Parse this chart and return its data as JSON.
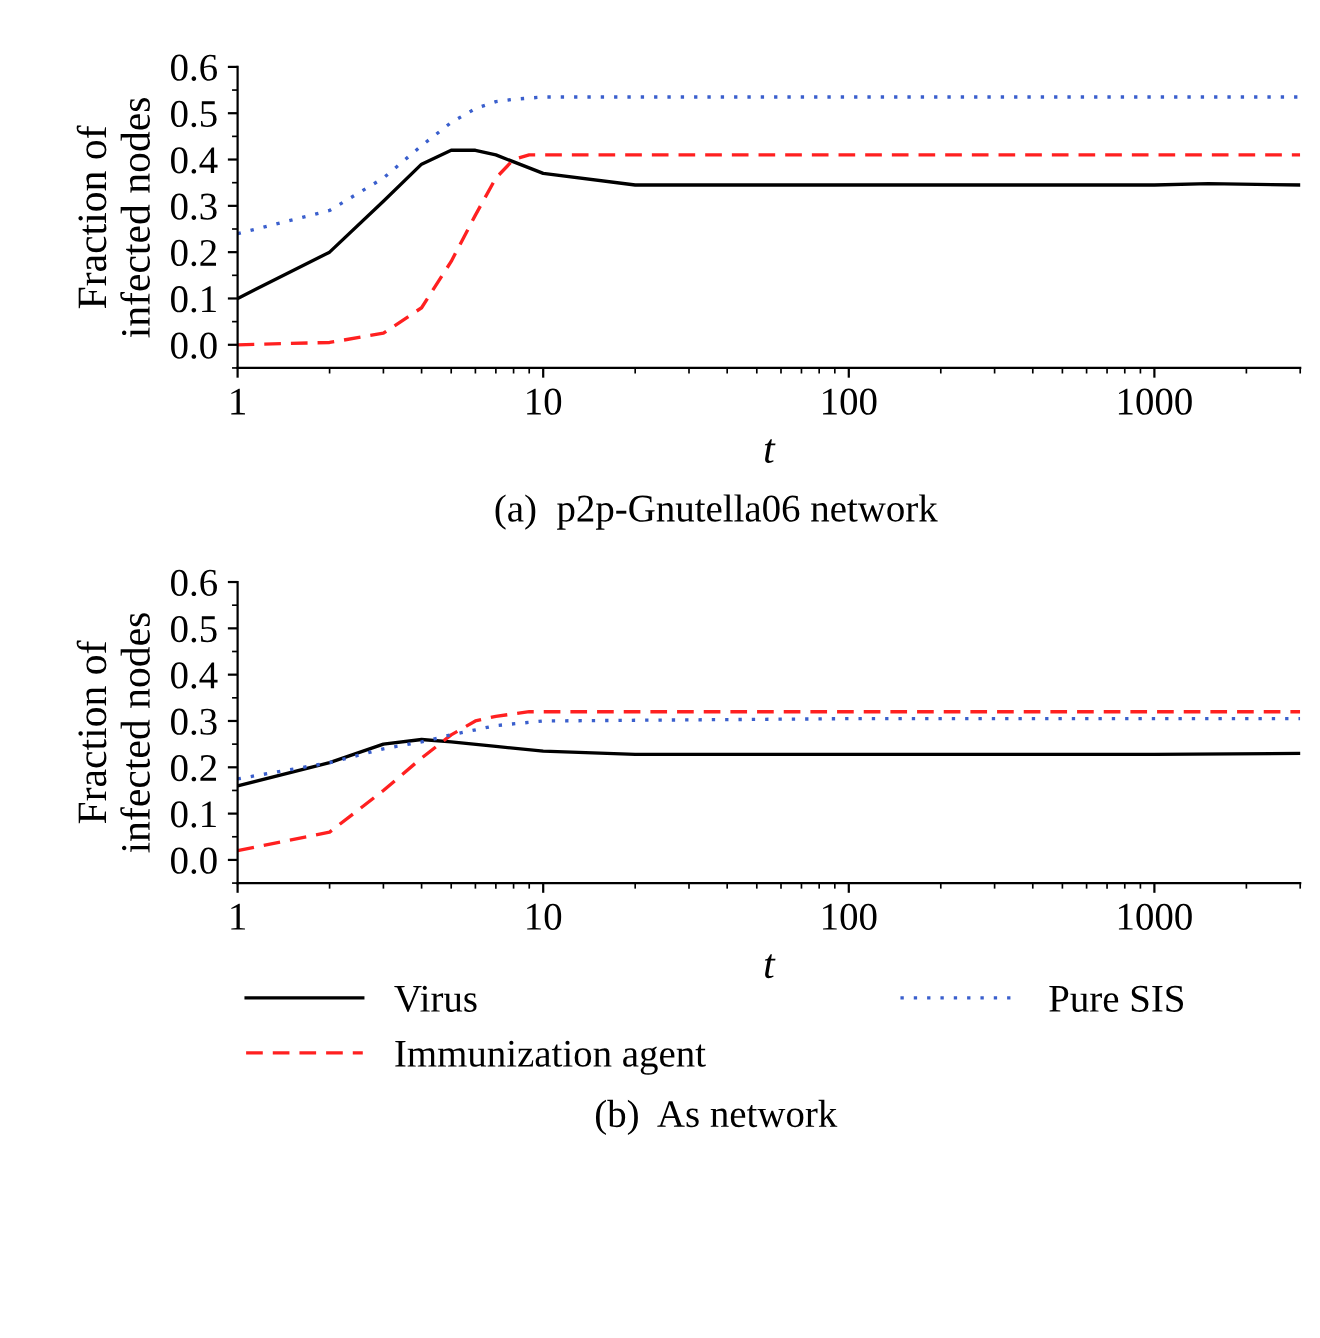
{
  "chart_data": [
    {
      "type": "line",
      "title": "(a)  p2p-Gnutella06 network",
      "xlabel": "t",
      "ylabel": "Fraction of\ninfected nodes",
      "log": "x",
      "xlim": [
        1,
        3000
      ],
      "xticks": [
        1,
        10,
        100,
        1000
      ],
      "ylim": [
        -0.05,
        0.6
      ],
      "yticks": [
        {
          "value": 0,
          "label": "0.0"
        },
        0.1,
        0.2,
        0.3,
        0.4,
        0.5,
        0.6
      ],
      "grid": false,
      "legend": false,
      "series": [
        {
          "color": "#000000",
          "line_style": "solid",
          "x": [
            1,
            2,
            3,
            4,
            5,
            6,
            7,
            10,
            20,
            50,
            100,
            1000,
            1500,
            3000
          ],
          "values": [
            0.1,
            0.2,
            0.31,
            0.39,
            0.42,
            0.42,
            0.41,
            0.37,
            0.345,
            0.345,
            0.345,
            0.345,
            0.348,
            0.345
          ]
        },
        {
          "color": "#ff2020",
          "line_style": "dashed",
          "x": [
            1,
            2,
            3,
            4,
            5,
            6,
            7,
            8,
            9,
            10,
            100,
            1000,
            3000
          ],
          "values": [
            0.0,
            0.005,
            0.025,
            0.08,
            0.18,
            0.28,
            0.36,
            0.4,
            0.41,
            0.41,
            0.41,
            0.41,
            0.41
          ]
        },
        {
          "color": "#3a5fcd",
          "line_style": "dotted",
          "x": [
            1,
            2,
            3,
            4,
            5,
            6,
            7,
            8,
            10,
            100,
            3000
          ],
          "values": [
            0.24,
            0.29,
            0.36,
            0.43,
            0.48,
            0.51,
            0.525,
            0.53,
            0.535,
            0.535,
            0.535
          ]
        }
      ]
    },
    {
      "type": "line",
      "title": "(b)  As network",
      "xlabel": "t",
      "ylabel": "Fraction of\ninfected nodes",
      "log": "x",
      "xlim": [
        1,
        3000
      ],
      "xticks": [
        1,
        10,
        100,
        1000
      ],
      "ylim": [
        -0.05,
        0.6
      ],
      "yticks": [
        {
          "value": 0,
          "label": "0.0"
        },
        0.1,
        0.2,
        0.3,
        0.4,
        0.5,
        0.6
      ],
      "grid": false,
      "legend": "bottom",
      "series": [
        {
          "name": "Virus",
          "color": "#000000",
          "line_style": "solid",
          "x": [
            1,
            2,
            3,
            4,
            5,
            7,
            10,
            20,
            100,
            1000,
            3000
          ],
          "values": [
            0.16,
            0.21,
            0.25,
            0.26,
            0.255,
            0.245,
            0.235,
            0.228,
            0.228,
            0.228,
            0.23
          ]
        },
        {
          "name": "Immunization agent",
          "color": "#ff2020",
          "line_style": "dashed",
          "x": [
            1,
            2,
            3,
            4,
            5,
            6,
            7,
            9,
            100,
            3000
          ],
          "values": [
            0.02,
            0.06,
            0.15,
            0.22,
            0.27,
            0.3,
            0.31,
            0.32,
            0.32,
            0.32
          ]
        },
        {
          "name": "Pure SIS",
          "color": "#3a5fcd",
          "line_style": "dotted",
          "x": [
            1,
            2,
            3,
            4,
            5,
            7,
            10,
            100,
            3000
          ],
          "values": [
            0.175,
            0.21,
            0.24,
            0.255,
            0.27,
            0.29,
            0.3,
            0.305,
            0.305
          ]
        }
      ]
    }
  ]
}
